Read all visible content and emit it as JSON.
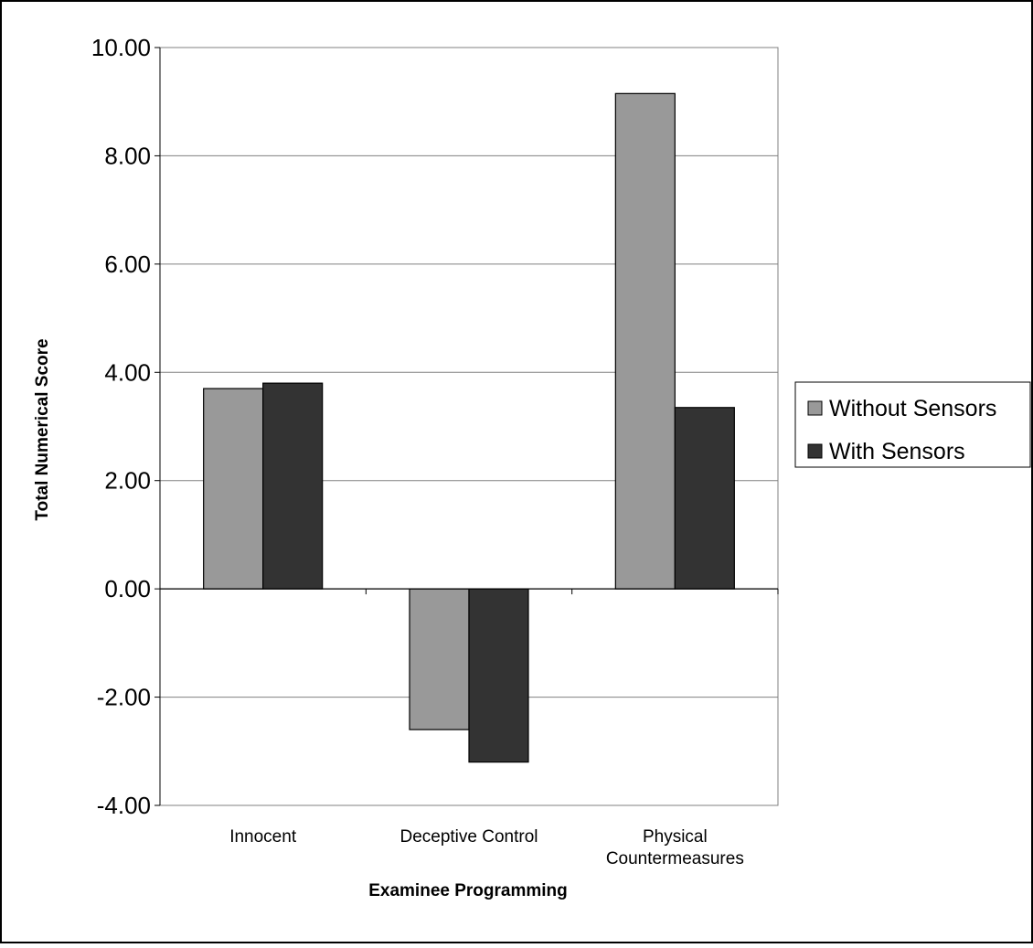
{
  "chart_data": {
    "type": "bar",
    "xlabel": "Examinee Programming",
    "ylabel": "Total Numerical Score",
    "categories": [
      "Innocent",
      "Deceptive Control",
      "Physical\nCountermeasures"
    ],
    "series": [
      {
        "name": "Without Sensors",
        "values": [
          3.7,
          -2.6,
          9.15
        ],
        "color": "#999999"
      },
      {
        "name": "With Sensors",
        "values": [
          3.8,
          -3.2,
          3.35
        ],
        "color": "#333333"
      }
    ],
    "ylim": [
      -4,
      10
    ],
    "yticks": [
      -4,
      -2,
      0,
      2,
      4,
      6,
      8,
      10
    ],
    "ytick_labels": [
      "-4.00",
      "-2.00",
      "0.00",
      "2.00",
      "4.00",
      "6.00",
      "8.00",
      "10.00"
    ],
    "grid": true,
    "legend_position": "right"
  }
}
